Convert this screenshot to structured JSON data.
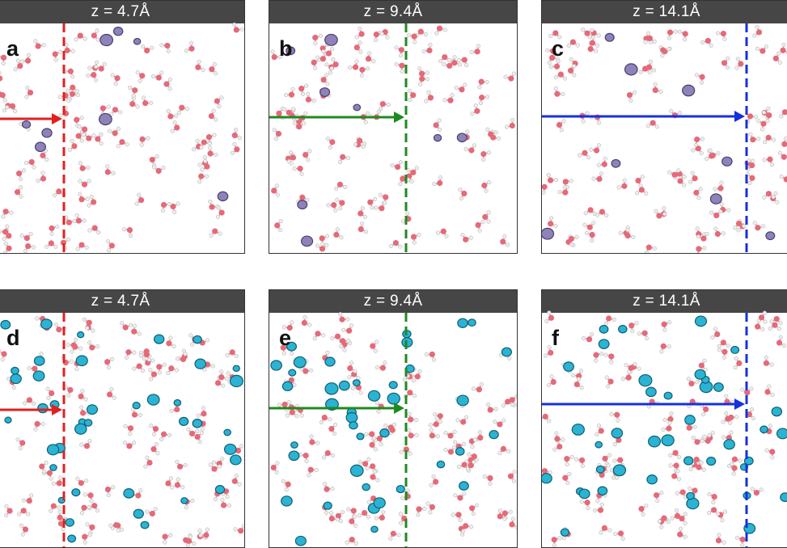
{
  "panels": [
    {
      "letter": "a",
      "label": "z = 4.7Å",
      "row": "top",
      "marker_color": "#e02020"
    },
    {
      "letter": "b",
      "label": "z = 9.4Å",
      "row": "top",
      "marker_color": "#1f8a1f"
    },
    {
      "letter": "c",
      "label": "z = 14.1Å",
      "row": "top",
      "marker_color": "#1530e0"
    },
    {
      "letter": "d",
      "label": "z = 4.7Å",
      "row": "bottom",
      "marker_color": "#e02020"
    },
    {
      "letter": "e",
      "label": "z = 9.4Å",
      "row": "bottom",
      "marker_color": "#1f8a1f"
    },
    {
      "letter": "f",
      "label": "z = 14.1Å",
      "row": "bottom",
      "marker_color": "#1530e0"
    }
  ],
  "colors": {
    "oxygen": "#e56a78",
    "hydrogen": "#eeeeee",
    "top_isosurface": "#8e82b8",
    "bottom_isosurface": "#2bb3d3",
    "header_bg": "#464646"
  }
}
